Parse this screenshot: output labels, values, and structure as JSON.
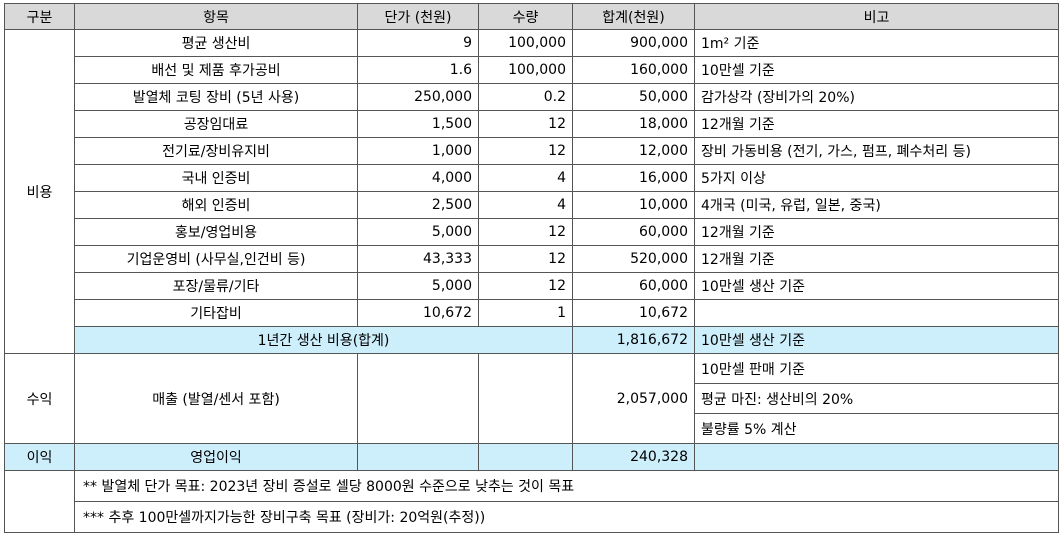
{
  "headers": [
    "구분",
    "항목",
    "단가 (천원)",
    "수량",
    "합계(천원)",
    "비고"
  ],
  "cost_section": {
    "label": "비용",
    "rows": [
      {
        "item": "평균 생산비",
        "unit_price": "9",
        "qty": "100,000",
        "total": "900,000",
        "note": "1m² 기준"
      },
      {
        "item": "배선 및 제품 후가공비",
        "unit_price": "1.6",
        "qty": "100,000",
        "total": "160,000",
        "note": "10만셀 기준"
      },
      {
        "item": "발열체 코팅 장비 (5년 사용)",
        "unit_price": "250,000",
        "qty": "0.2",
        "total": "50,000",
        "note": "감가상각 (장비가의 20%)"
      },
      {
        "item": "공장임대료",
        "unit_price": "1,500",
        "qty": "12",
        "total": "18,000",
        "note": "12개월 기준"
      },
      {
        "item": "전기료/장비유지비",
        "unit_price": "1,000",
        "qty": "12",
        "total": "12,000",
        "note": "장비 가동비용 (전기, 가스, 펌프, 폐수처리 등)"
      },
      {
        "item": "국내 인증비",
        "unit_price": "4,000",
        "qty": "4",
        "total": "16,000",
        "note": "5가지 이상"
      },
      {
        "item": "해외 인증비",
        "unit_price": "2,500",
        "qty": "4",
        "total": "10,000",
        "note": "4개국 (미국, 유럽, 일본, 중국)"
      },
      {
        "item": "홍보/영업비용",
        "unit_price": "5,000",
        "qty": "12",
        "total": "60,000",
        "note": "12개월 기준"
      },
      {
        "item": "기업운영비 (사무실,인건비 등)",
        "unit_price": "43,333",
        "qty": "12",
        "total": "520,000",
        "note": "12개월 기준"
      },
      {
        "item": "포장/물류/기타",
        "unit_price": "5,000",
        "qty": "12",
        "total": "60,000",
        "note": "10만셀 생산 기준"
      },
      {
        "item": "기타잡비",
        "unit_price": "10,672",
        "qty": "1",
        "total": "10,672",
        "note": ""
      }
    ],
    "subtotal": {
      "label": "1년간 생산 비용(합계)",
      "total": "1,816,672",
      "note": "10만셀 생산 기준"
    }
  },
  "revenue_section": {
    "label": "수익",
    "item": "매출 (발열/센서 포함)",
    "total": "2,057,000",
    "notes": [
      "10만셀 판매 기준",
      "평균 마진: 생산비의 20%",
      "불량률 5% 계산"
    ]
  },
  "profit_section": {
    "label": "이익",
    "item": "영업이익",
    "total": "240,328"
  },
  "footnotes": [
    "**  발열체 단가 목표: 2023년 장비 증설로 셀당 8000원 수준으로 낮추는 것이 목표",
    "*** 추후 100만셀까지가능한 장비구축 목표 (장비가: 20억원(추정))"
  ]
}
